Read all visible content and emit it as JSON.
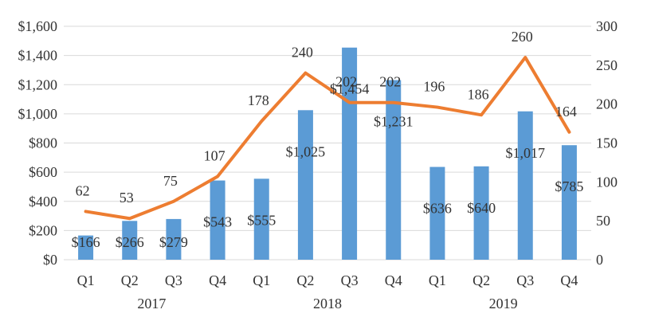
{
  "chart_data": {
    "type": "bar",
    "categories": [
      "Q1",
      "Q2",
      "Q3",
      "Q4",
      "Q1",
      "Q2",
      "Q3",
      "Q4",
      "Q1",
      "Q2",
      "Q3",
      "Q4"
    ],
    "years": [
      "2017",
      "2018",
      "2019"
    ],
    "series": [
      {
        "type": "bar",
        "axis": "left",
        "color": "#5b9bd5",
        "values": [
          166,
          266,
          279,
          543,
          555,
          1025,
          1454,
          1231,
          636,
          640,
          1017,
          785
        ],
        "labels": [
          "$166",
          "$266",
          "$279",
          "$543",
          "$555",
          "$1,025",
          "$1,454",
          "$1,231",
          "$636",
          "$640",
          "$1,017",
          "$785"
        ]
      },
      {
        "type": "line",
        "axis": "right",
        "color": "#ed7d31",
        "values": [
          62,
          53,
          75,
          107,
          178,
          240,
          202,
          202,
          196,
          186,
          260,
          164
        ],
        "labels": [
          "62",
          "53",
          "75",
          "107",
          "178",
          "240",
          "202",
          "202",
          "196",
          "186",
          "260",
          "164"
        ]
      }
    ],
    "left_axis": {
      "ylim": [
        0,
        1600
      ],
      "ticks": [
        "$0",
        "$200",
        "$400",
        "$600",
        "$800",
        "$1,000",
        "$1,200",
        "$1,400",
        "$1,600"
      ]
    },
    "right_axis": {
      "ylim": [
        0,
        300
      ],
      "ticks": [
        "0",
        "50",
        "100",
        "150",
        "200",
        "250",
        "300"
      ]
    },
    "grid": true
  }
}
